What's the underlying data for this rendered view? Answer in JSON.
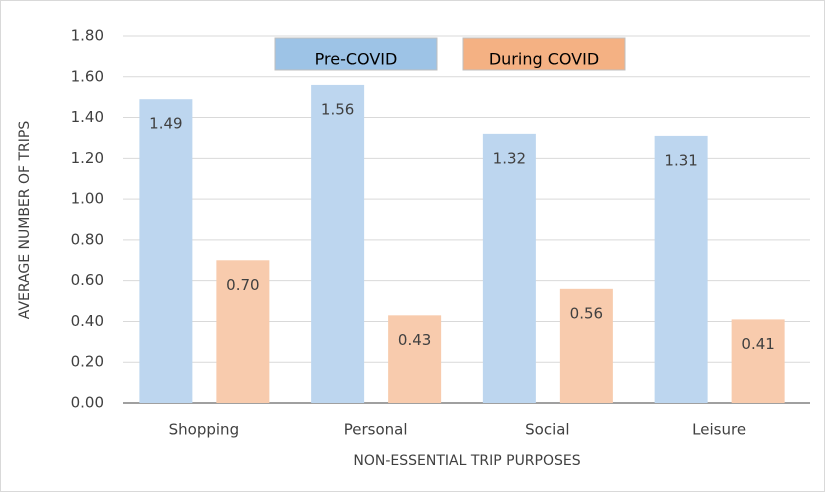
{
  "chart_data": {
    "type": "bar",
    "y_label": "AVERAGE NUMBER OF TRIPS",
    "x_label": "NON-ESSENTIAL TRIP PURPOSES",
    "categories": [
      "Shopping",
      "Personal",
      "Social",
      "Leisure"
    ],
    "series": [
      {
        "name": "Pre-COVID",
        "color": "#bdd6ef",
        "legend_color": "#9dc3e6",
        "values": [
          1.49,
          1.56,
          1.32,
          1.31
        ],
        "value_labels": [
          "1.49",
          "1.56",
          "1.32",
          "1.31"
        ]
      },
      {
        "name": "During COVID",
        "color": "#f8cbad",
        "legend_color": "#f4b183",
        "values": [
          0.7,
          0.43,
          0.56,
          0.41
        ],
        "value_labels": [
          "0.70",
          "0.43",
          "0.56",
          "0.41"
        ]
      }
    ],
    "ylim": [
      0,
      1.8
    ],
    "yticks": [
      {
        "value": 0,
        "label": "0.00"
      },
      {
        "value": 0.2,
        "label": "0.20"
      },
      {
        "value": 0.4,
        "label": "0.40"
      },
      {
        "value": 0.6,
        "label": "0.60"
      },
      {
        "value": 0.8,
        "label": "0.80"
      },
      {
        "value": 1,
        "label": "1.00"
      },
      {
        "value": 1.2,
        "label": "1.20"
      },
      {
        "value": 1.4,
        "label": "1.40"
      },
      {
        "value": 1.6,
        "label": "1.60"
      },
      {
        "value": 1.8,
        "label": "1.80"
      }
    ],
    "grid": true
  }
}
